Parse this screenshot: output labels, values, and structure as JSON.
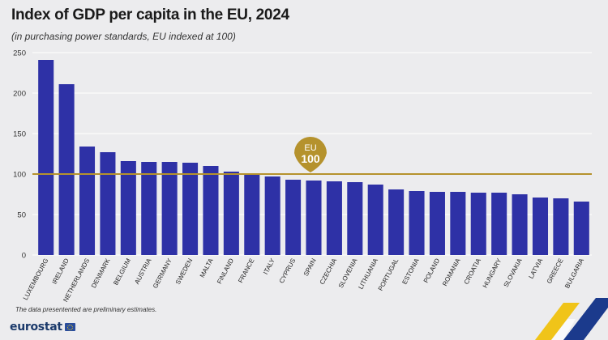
{
  "header": {
    "title": "Index of GDP per capita in the EU, 2024",
    "subtitle": "(in purchasing power standards, EU indexed at 100)"
  },
  "footer": {
    "note": "The data presentented are preliminary estimates.",
    "logo_text": "eurostat"
  },
  "colors": {
    "bar": "#2e31a6",
    "reference_line": "#b5922d",
    "marker": "#b5922d",
    "background": "#ececee",
    "grid": "#ffffff"
  },
  "chart_data": {
    "type": "bar",
    "categories": [
      "LUXEMBOURG",
      "IRELAND",
      "NETHERLANDS",
      "DENMARK",
      "BELGIUM",
      "AUSTRIA",
      "GERMANY",
      "SWEDEN",
      "MALTA",
      "FINLAND",
      "FRANCE",
      "ITALY",
      "CYPRUS",
      "SPAIN",
      "CZECHIA",
      "SLOVENIA",
      "LITHUANIA",
      "PORTUGAL",
      "ESTONIA",
      "POLAND",
      "ROMANIA",
      "CROATIA",
      "HUNGARY",
      "SLOVAKIA",
      "LATVIA",
      "GREECE",
      "BULGARIA"
    ],
    "values": [
      241,
      211,
      134,
      127,
      116,
      115,
      115,
      114,
      110,
      103,
      99,
      97,
      93,
      92,
      91,
      90,
      87,
      81,
      79,
      78,
      78,
      77,
      77,
      75,
      71,
      70,
      66
    ],
    "ylim": [
      0,
      250
    ],
    "yticks": [
      0,
      50,
      100,
      150,
      200,
      250
    ],
    "reference": {
      "value": 100,
      "label_top": "EU",
      "label_bottom": "100"
    },
    "grid": true,
    "legend": "none"
  }
}
